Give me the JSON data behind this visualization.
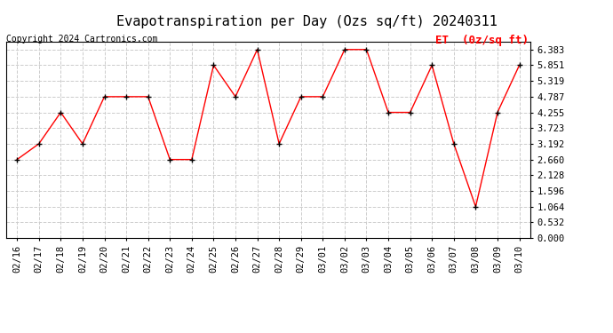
{
  "title": "Evapotranspiration per Day (Ozs sq/ft) 20240311",
  "copyright": "Copyright 2024 Cartronics.com",
  "legend_label": "ET  (0z/sq ft)",
  "dates": [
    "02/16",
    "02/17",
    "02/18",
    "02/19",
    "02/20",
    "02/21",
    "02/22",
    "02/23",
    "02/24",
    "02/25",
    "02/26",
    "02/27",
    "02/28",
    "02/29",
    "03/01",
    "03/02",
    "03/03",
    "03/04",
    "03/05",
    "03/06",
    "03/07",
    "03/08",
    "03/09",
    "03/10"
  ],
  "values": [
    2.66,
    3.192,
    4.255,
    3.192,
    4.787,
    4.787,
    4.787,
    2.66,
    2.66,
    5.851,
    4.787,
    6.383,
    3.192,
    4.787,
    4.787,
    6.383,
    6.383,
    4.255,
    4.255,
    5.851,
    3.192,
    1.064,
    4.255,
    5.851
  ],
  "line_color": "#FF0000",
  "marker": "+",
  "marker_color": "#000000",
  "background_color": "#FFFFFF",
  "grid_color": "#CCCCCC",
  "yticks": [
    0.0,
    0.532,
    1.064,
    1.596,
    2.128,
    2.66,
    3.192,
    3.723,
    4.255,
    4.787,
    5.319,
    5.851,
    6.383
  ],
  "ylim": [
    0.0,
    6.65
  ],
  "title_fontsize": 11,
  "copyright_fontsize": 7,
  "legend_fontsize": 9,
  "tick_fontsize": 7.5
}
